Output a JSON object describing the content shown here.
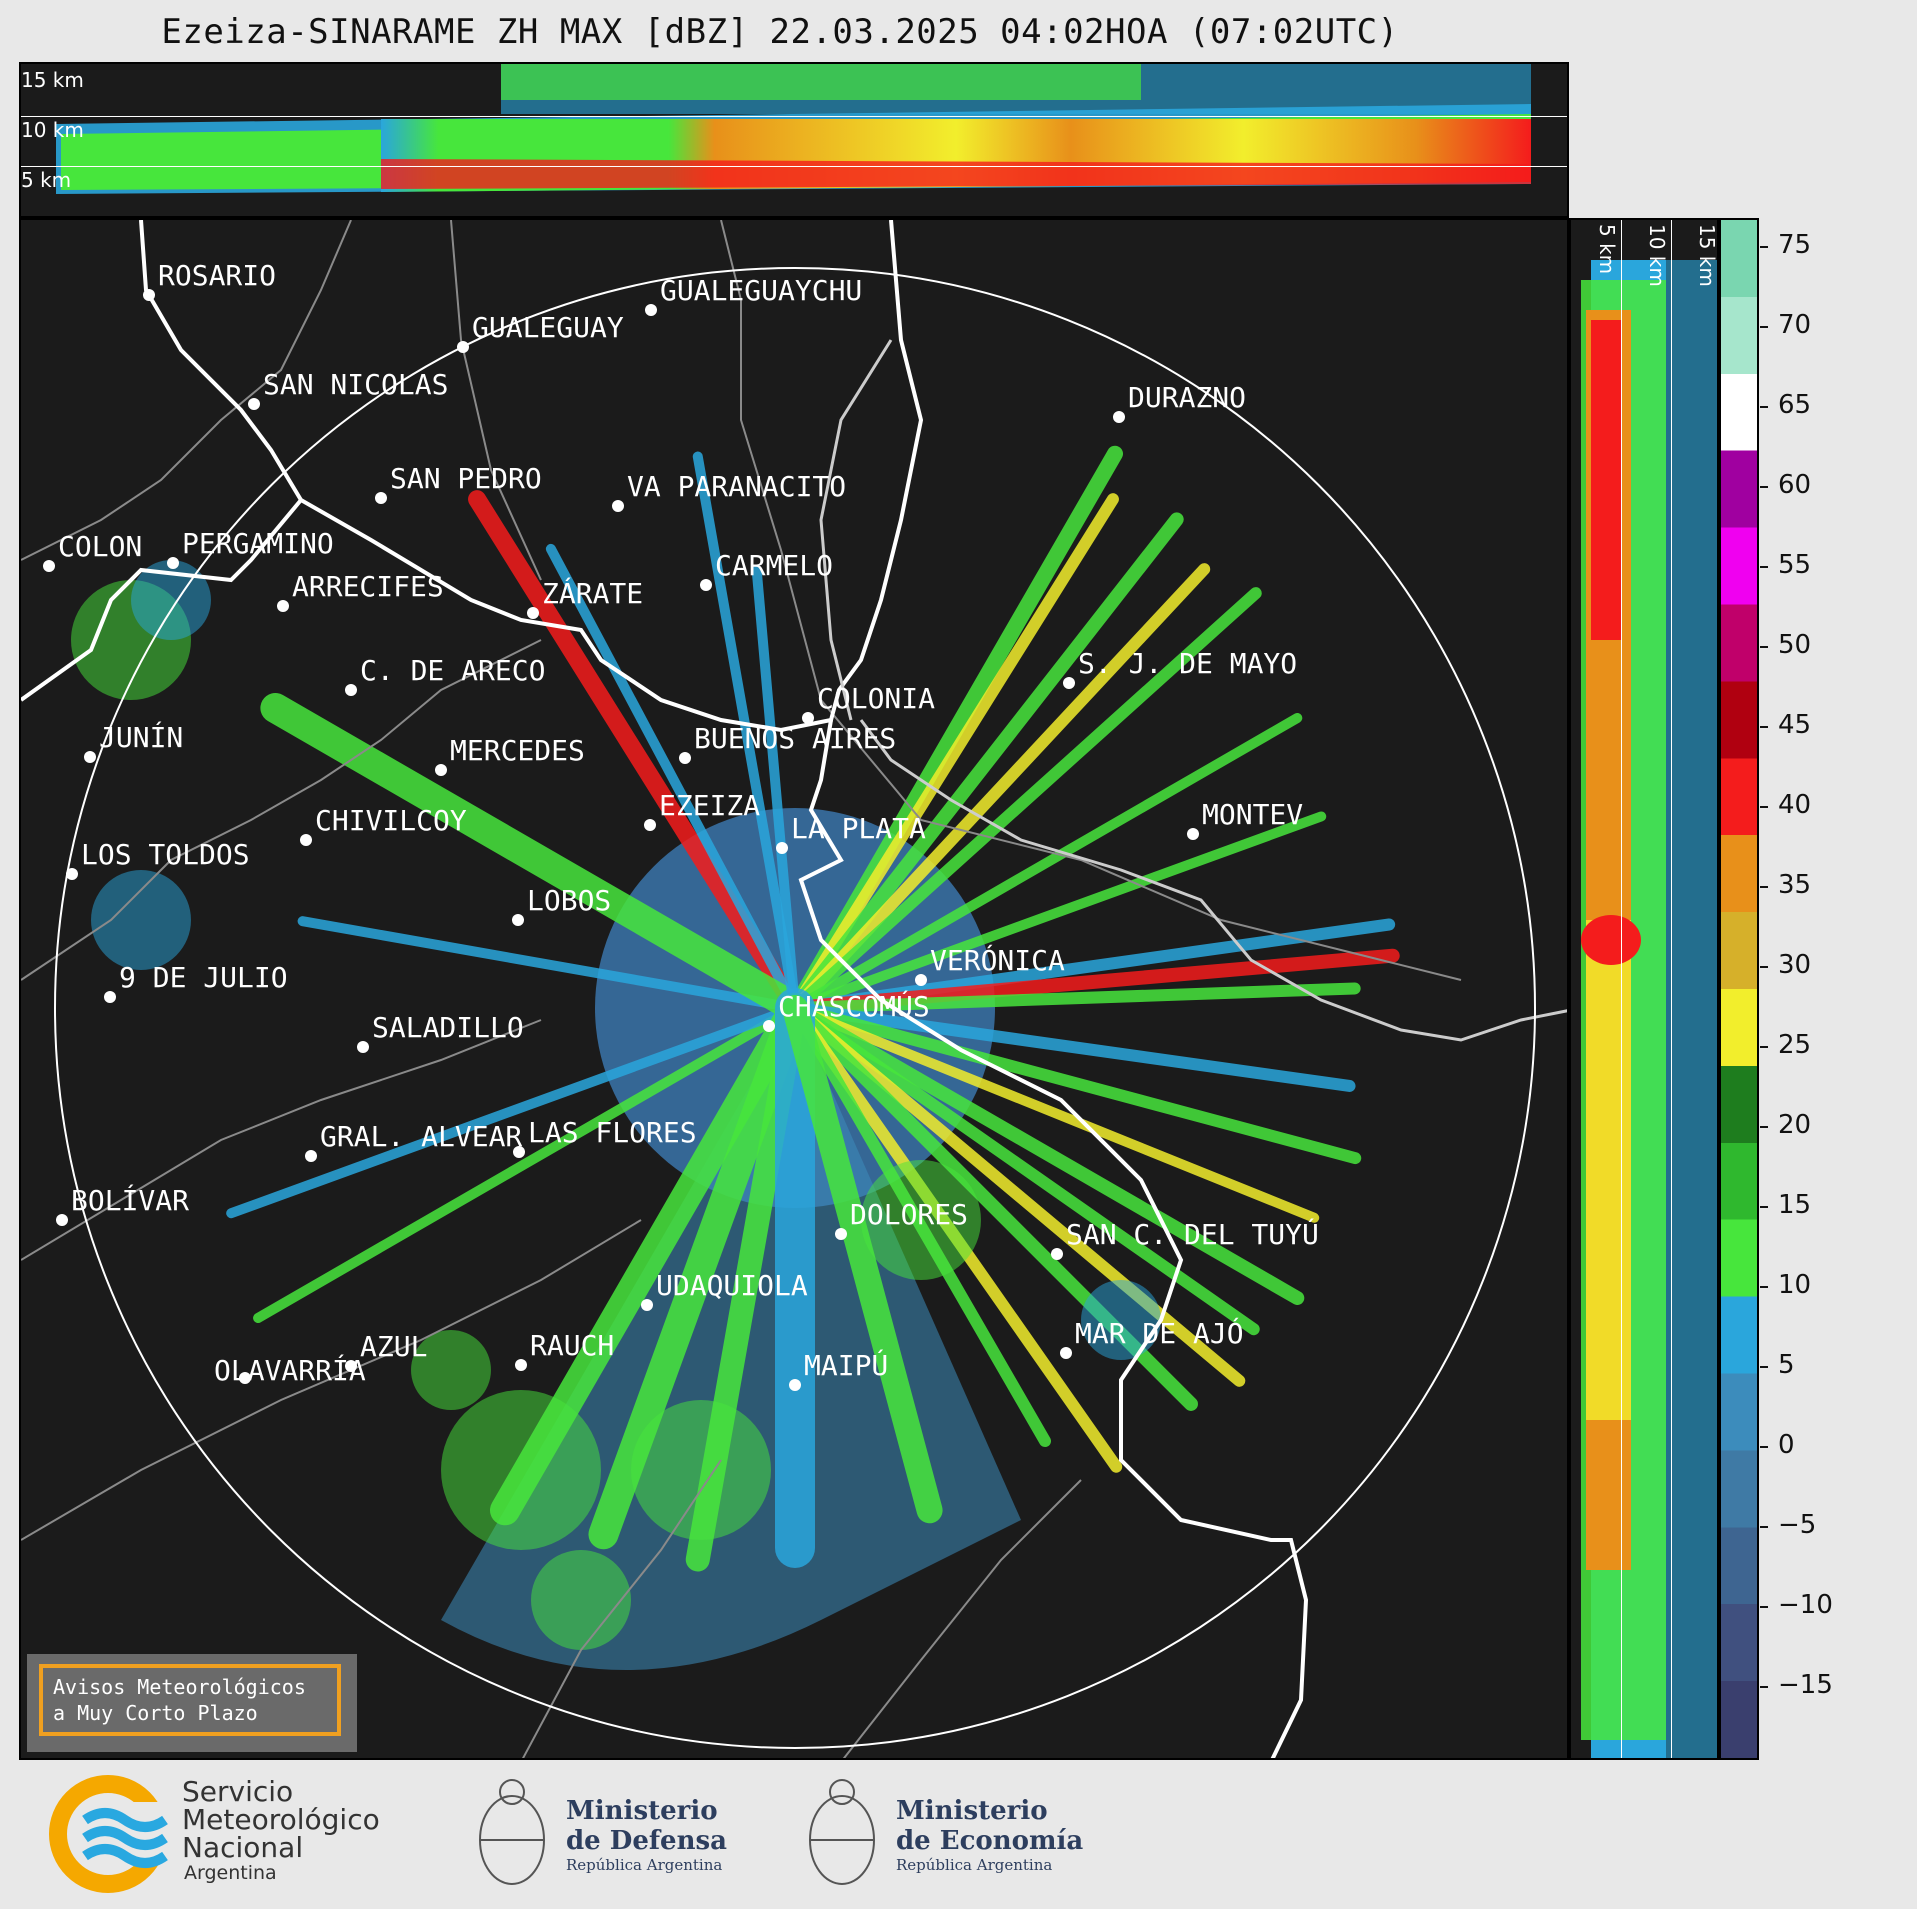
{
  "title": "Ezeiza-SINARAME ZH MAX [dBZ] 22.03.2025 04:02HOA (07:02UTC)",
  "height_labels": {
    "h15": "15 km",
    "h10": "10 km",
    "h5": "5 km"
  },
  "colorbar": {
    "ticks": [
      "75",
      "70",
      "65",
      "60",
      "55",
      "50",
      "45",
      "40",
      "35",
      "30",
      "25",
      "20",
      "15",
      "10",
      "5",
      "0",
      "−5",
      "−10",
      "−15"
    ],
    "colors": [
      "#3a3f6e",
      "#40507f",
      "#3e6591",
      "#3f7aa5",
      "#3c8cbc",
      "#2aa6dc",
      "#47e63c",
      "#2fb82e",
      "#1e7d1e",
      "#f2ee2c",
      "#d6b02a",
      "#e8901a",
      "#f41c1c",
      "#b00010",
      "#c0006a",
      "#f000f0",
      "#a000a0",
      "#ffffff",
      "#a6e6cc",
      "#7ad6b0"
    ]
  },
  "cities": [
    {
      "name": "ROSARIO"
    },
    {
      "name": "GUALEGUAYCHU"
    },
    {
      "name": "GUALEGUAY"
    },
    {
      "name": "SAN NICOLAS"
    },
    {
      "name": "DURAZNO"
    },
    {
      "name": "SAN PEDRO"
    },
    {
      "name": "VA PARANACITO"
    },
    {
      "name": "COLON"
    },
    {
      "name": "PERGAMINO"
    },
    {
      "name": "CARMELO"
    },
    {
      "name": "ARRECIFES"
    },
    {
      "name": "ZÁRATE"
    },
    {
      "name": "C. DE ARECO"
    },
    {
      "name": "S. J. DE MAYO"
    },
    {
      "name": "COLONIA"
    },
    {
      "name": "JUNÍN"
    },
    {
      "name": "BUENOS AIRES"
    },
    {
      "name": "MERCEDES"
    },
    {
      "name": "EZEIZA"
    },
    {
      "name": "MONTEV"
    },
    {
      "name": "CHIVILCOY"
    },
    {
      "name": "LA PLATA"
    },
    {
      "name": "LOS TOLDOS"
    },
    {
      "name": "LOBOS"
    },
    {
      "name": "VERÓNICA"
    },
    {
      "name": "9 DE JULIO"
    },
    {
      "name": "CHASCOMÚS"
    },
    {
      "name": "SALADILLO"
    },
    {
      "name": "GRAL. ALVEAR"
    },
    {
      "name": "LAS FLORES"
    },
    {
      "name": "BOLÍVAR"
    },
    {
      "name": "DOLORES"
    },
    {
      "name": "SAN C. DEL TUYÚ"
    },
    {
      "name": "UDAQUIOLA"
    },
    {
      "name": "MAR DE AJÓ"
    },
    {
      "name": "AZUL"
    },
    {
      "name": "RAUCH"
    },
    {
      "name": "OLAVARRÍA"
    },
    {
      "name": "MAIPÚ"
    }
  ],
  "warning": {
    "line1": "Avisos Meteorológicos",
    "line2": "a Muy Corto Plazo"
  },
  "footer": {
    "smn": {
      "line1": "Servicio",
      "line2": "Meteorológico",
      "line3": "Nacional",
      "line4": "Argentina"
    },
    "defensa": {
      "line1": "Ministerio",
      "line2": "de Defensa",
      "line3": "República Argentina"
    },
    "economia": {
      "line1": "Ministerio",
      "line2": "de Economía",
      "line3": "República Argentina"
    }
  }
}
